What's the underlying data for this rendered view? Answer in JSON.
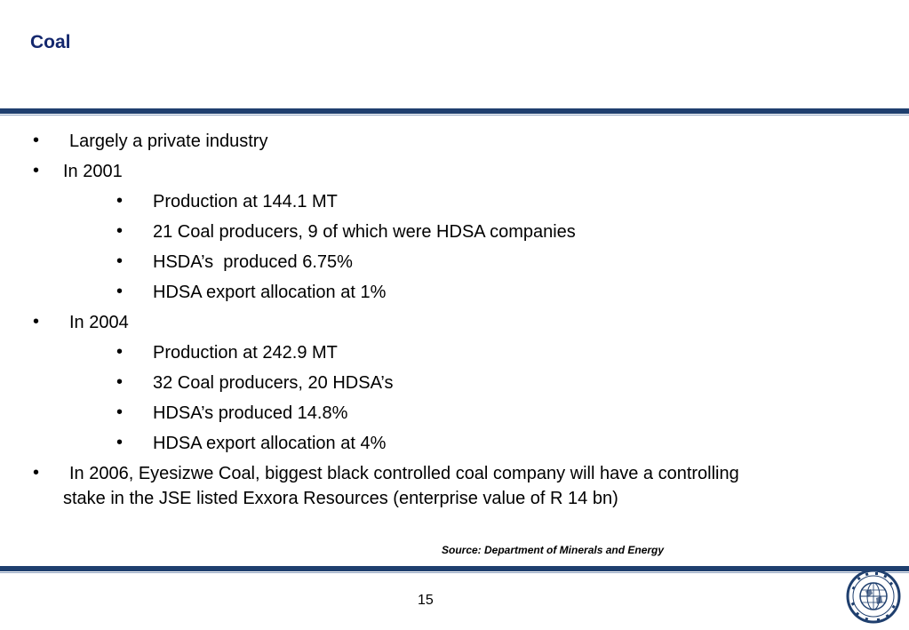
{
  "slide": {
    "title": "Coal",
    "bullets": {
      "b1": "Largely a private industry",
      "b2": "In 2001",
      "b2_1": "Production at 144.1 MT",
      "b2_2": "21 Coal producers, 9 of which were HDSA companies",
      "b2_3": "HSDA’s  produced 6.75%",
      "b2_4": "HDSA export allocation at 1%",
      "b3": "In 2004",
      "b3_1": "Production at 242.9 MT",
      "b3_2": "32 Coal producers, 20 HDSA’s",
      "b3_3": "HDSA’s produced 14.8%",
      "b3_4": "HDSA export allocation at 4%",
      "b4_line1": "In 2006, Eyesizwe Coal, biggest black controlled coal company will have a controlling",
      "b4_line2": "stake in the JSE listed Exxora Resources (enterprise value of R 14 bn)"
    },
    "bullet_glyph": "•",
    "source": "Source: Department of Minerals and Energy",
    "page_number": "15",
    "colors": {
      "title": "#14286e",
      "rule": "#1f3f6e",
      "logo_blue": "#1f3f6e"
    },
    "logo_icon": "globe-seal-icon"
  }
}
